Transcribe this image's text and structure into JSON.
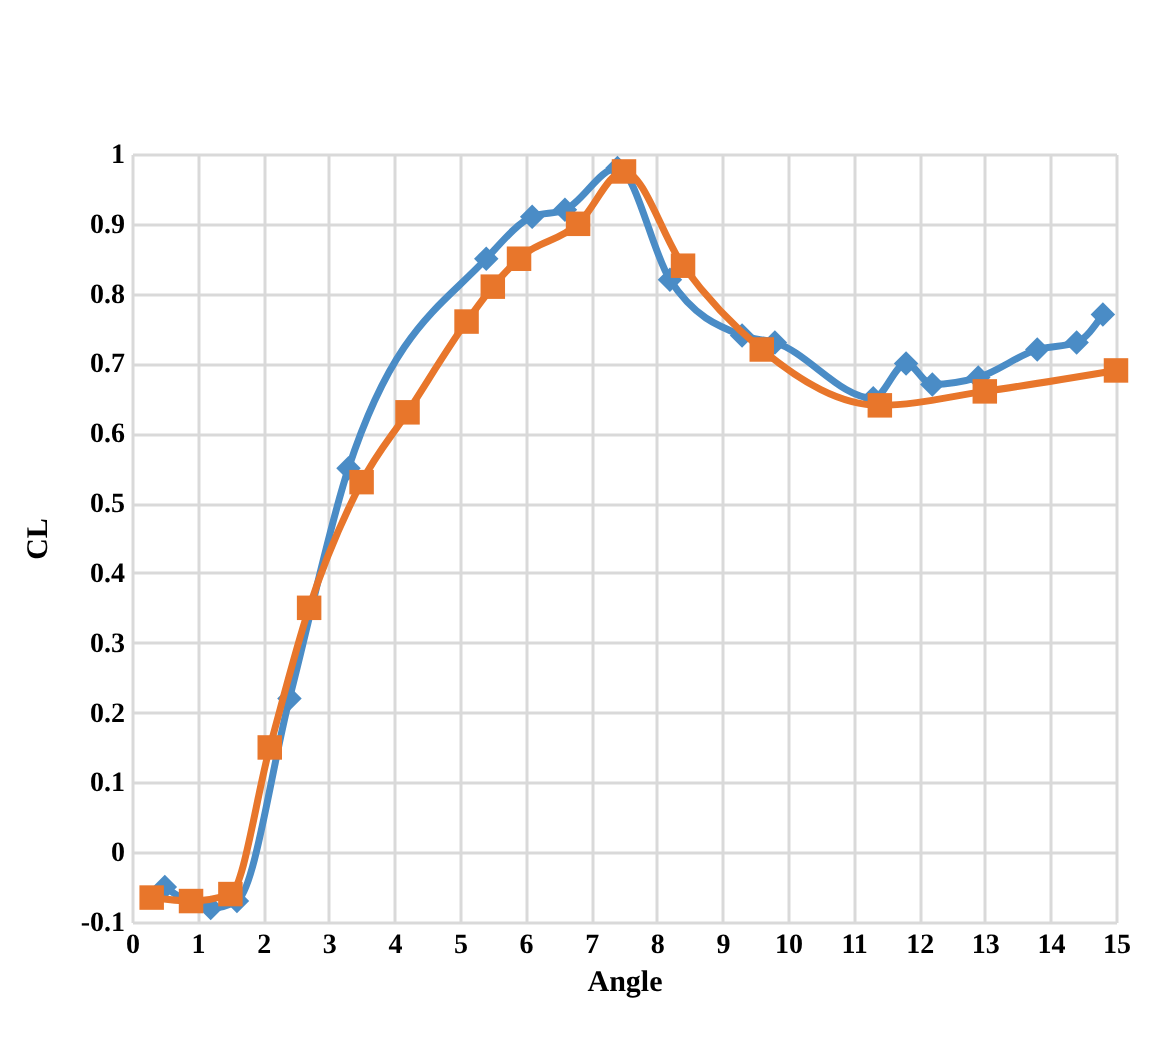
{
  "chart_data": {
    "type": "line",
    "xlabel": "Angle",
    "ylabel": "CL",
    "xlim": [
      0,
      15
    ],
    "xticks": [
      0,
      1,
      2,
      3,
      4,
      5,
      6,
      7,
      8,
      9,
      10,
      11,
      12,
      13,
      14,
      15
    ],
    "ylim": [
      -0.1,
      1
    ],
    "yticks": [
      -0.1,
      0,
      0.1,
      0.2,
      0.3,
      0.4,
      0.5,
      0.6,
      0.7,
      0.8,
      0.9,
      1
    ],
    "grid": true,
    "series": [
      {
        "color": "#4a8cc6",
        "marker": "diamond",
        "x": [
          0.5,
          1.2,
          1.6,
          2.4,
          3.3,
          5.4,
          6.1,
          6.6,
          7.4,
          8.2,
          9.3,
          9.8,
          11.3,
          11.8,
          12.2,
          12.9,
          13.8,
          14.4,
          14.8
        ],
        "values": [
          -0.05,
          -0.08,
          -0.07,
          0.22,
          0.55,
          0.85,
          0.91,
          0.92,
          0.98,
          0.82,
          0.74,
          0.73,
          0.65,
          0.7,
          0.67,
          0.68,
          0.72,
          0.73,
          0.77
        ]
      },
      {
        "color": "#e8762b",
        "marker": "square",
        "x": [
          0.3,
          0.9,
          1.5,
          2.1,
          2.7,
          3.5,
          4.2,
          5.1,
          5.5,
          5.9,
          6.8,
          7.5,
          8.4,
          9.6,
          11.4,
          13,
          15
        ],
        "values": [
          -0.065,
          -0.07,
          -0.06,
          0.15,
          0.35,
          0.53,
          0.63,
          0.76,
          0.81,
          0.85,
          0.9,
          0.975,
          0.84,
          0.72,
          0.64,
          0.66,
          0.69
        ]
      }
    ]
  }
}
